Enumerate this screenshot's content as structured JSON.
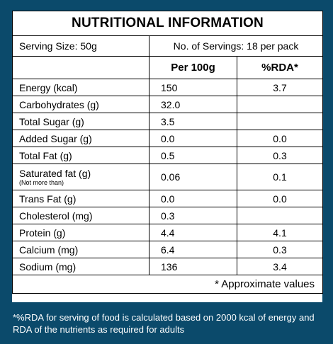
{
  "title": "NUTRITIONAL INFORMATION",
  "serving_size": "Serving Size: 50g",
  "servings": "No. of Servings: 18 per pack",
  "header": {
    "nutrient": "",
    "per100g": "Per 100g",
    "rda": "%RDA*"
  },
  "rows": [
    {
      "name": "Energy (kcal)",
      "note": "",
      "per100g": "150",
      "rda": "3.7"
    },
    {
      "name": "Carbohydrates (g)",
      "note": "",
      "per100g": "32.0",
      "rda": ""
    },
    {
      "name": "Total Sugar (g)",
      "note": "",
      "per100g": "3.5",
      "rda": ""
    },
    {
      "name": "Added Sugar (g)",
      "note": "",
      "per100g": "0.0",
      "rda": "0.0"
    },
    {
      "name": "Total Fat (g)",
      "note": "",
      "per100g": "0.5",
      "rda": "0.3"
    },
    {
      "name": "Saturated fat (g)",
      "note": "(Not more than)",
      "per100g": "0.06",
      "rda": "0.1"
    },
    {
      "name": "Trans Fat (g)",
      "note": "",
      "per100g": "0.0",
      "rda": "0.0"
    },
    {
      "name": "Cholesterol (mg)",
      "note": "",
      "per100g": "0.3",
      "rda": ""
    },
    {
      "name": "Protein (g)",
      "note": "",
      "per100g": "4.4",
      "rda": "4.1"
    },
    {
      "name": "Calcium (mg)",
      "note": "",
      "per100g": "6.4",
      "rda": "0.3"
    },
    {
      "name": "Sodium (mg)",
      "note": "",
      "per100g": "136",
      "rda": "3.4"
    }
  ],
  "approx_note": "* Approximate values",
  "footnote": "*%RDA  for serving of food is calculated based on 2000 kcal of energy and RDA of the nutrients as required for adults",
  "colors": {
    "background": "#0b4a6b",
    "panel": "#ffffff",
    "text": "#000000",
    "footnote_text": "#ffffff"
  }
}
